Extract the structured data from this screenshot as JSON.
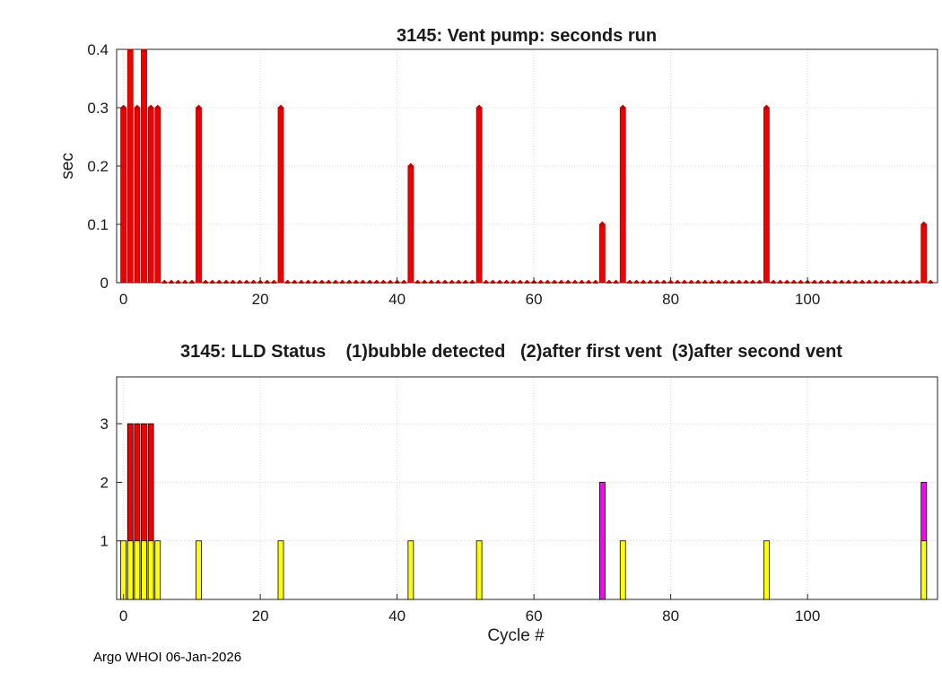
{
  "figure": {
    "background": "#ffffff",
    "footer": "Argo WHOI 06-Jan-2026"
  },
  "chart_data": [
    {
      "type": "bar",
      "title": "3145: Vent pump: seconds run",
      "xlabel": "",
      "ylabel": "sec",
      "xlim": [
        -1,
        119
      ],
      "ylim": [
        0,
        0.4
      ],
      "xticks": [
        0,
        20,
        40,
        60,
        80,
        100
      ],
      "yticks": [
        0,
        0.1,
        0.2,
        0.3,
        0.4
      ],
      "grid": true,
      "n_cycles": 119,
      "bar_color": "#f00000",
      "bar_edge_color": "#a00000",
      "marker": "diamond",
      "marker_color": "#c40000",
      "zero_markers": true,
      "series": [
        {
          "name": "vent-pump-seconds",
          "points": [
            [
              0,
              0.3
            ],
            [
              1,
              0.4
            ],
            [
              2,
              0.3
            ],
            [
              3,
              0.4
            ],
            [
              4,
              0.3
            ],
            [
              5,
              0.3
            ],
            [
              11,
              0.3
            ],
            [
              23,
              0.3
            ],
            [
              42,
              0.2
            ],
            [
              52,
              0.3
            ],
            [
              70,
              0.1
            ],
            [
              73,
              0.3
            ],
            [
              94,
              0.3
            ],
            [
              117,
              0.1
            ]
          ]
        }
      ]
    },
    {
      "type": "bar",
      "title": "3145: LLD Status    (1)bubble detected   (2)after first vent  (3)after second vent",
      "xlabel": "Cycle #",
      "ylabel": "",
      "xlim": [
        -1,
        119
      ],
      "ylim": [
        0,
        3.8
      ],
      "xticks": [
        0,
        20,
        40,
        60,
        80,
        100
      ],
      "yticks": [
        1,
        2,
        3
      ],
      "grid": true,
      "legend_note": {
        "1": "bubble detected",
        "2": "after first vent",
        "3": "after second vent"
      },
      "series": [
        {
          "name": "status-3-after-second-vent",
          "color": "#f00000",
          "edge": "#000000",
          "value": 3,
          "cycles": [
            1,
            2,
            3,
            4
          ]
        },
        {
          "name": "status-2-after-first-vent",
          "color": "#ff00ff",
          "edge": "#000000",
          "value": 2,
          "cycles": [
            70,
            117
          ]
        },
        {
          "name": "status-1-bubble-detected",
          "color": "#ffff00",
          "edge": "#000000",
          "value": 1,
          "cycles": [
            0,
            1,
            2,
            3,
            4,
            5,
            11,
            23,
            42,
            52,
            73,
            94,
            117
          ]
        }
      ]
    }
  ]
}
